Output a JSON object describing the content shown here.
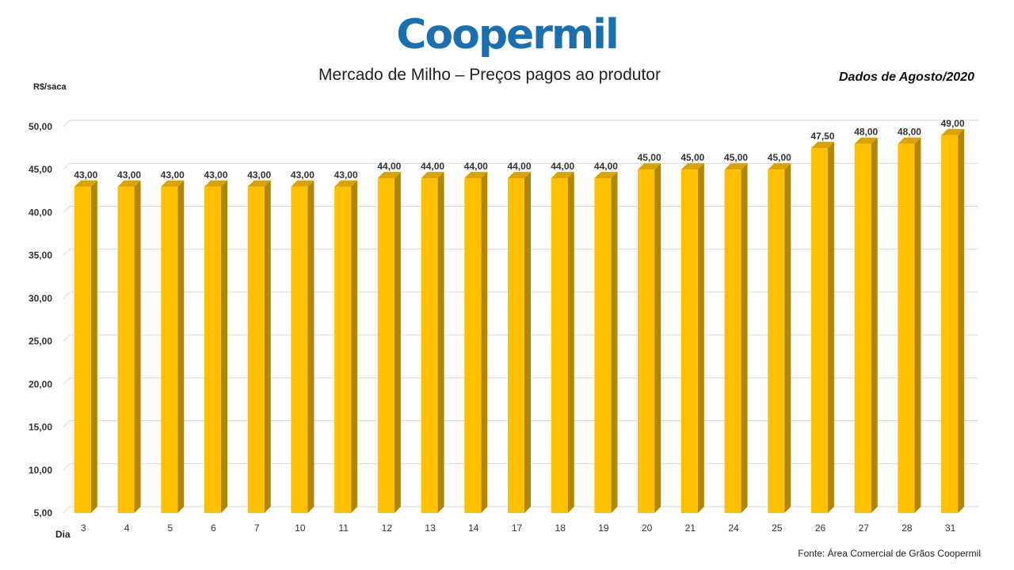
{
  "logo_text": "Coopermil",
  "chart_data": {
    "type": "bar",
    "title": "Mercado de Milho – Preços pagos ao produtor",
    "subtitle": "Dados de Agosto/2020",
    "xlabel": "Dia",
    "ylabel": "R$/saca",
    "source": "Fonte: Área Comercial de Grãos Coopermil",
    "categories": [
      "3",
      "4",
      "5",
      "6",
      "7",
      "10",
      "11",
      "12",
      "13",
      "14",
      "17",
      "18",
      "19",
      "20",
      "21",
      "24",
      "25",
      "26",
      "27",
      "28",
      "31"
    ],
    "values": [
      43.0,
      43.0,
      43.0,
      43.0,
      43.0,
      43.0,
      43.0,
      44.0,
      44.0,
      44.0,
      44.0,
      44.0,
      44.0,
      45.0,
      45.0,
      45.0,
      45.0,
      47.5,
      48.0,
      48.0,
      49.0
    ],
    "data_labels": [
      "43,00",
      "43,00",
      "43,00",
      "43,00",
      "43,00",
      "43,00",
      "43,00",
      "44,00",
      "44,00",
      "44,00",
      "44,00",
      "44,00",
      "44,00",
      "45,00",
      "45,00",
      "45,00",
      "45,00",
      "47,50",
      "48,00",
      "48,00",
      "49,00"
    ],
    "yticks": [
      "5,00",
      "10,00",
      "15,00",
      "20,00",
      "25,00",
      "30,00",
      "35,00",
      "40,00",
      "45,00",
      "50,00"
    ],
    "ylim": [
      5,
      50
    ],
    "grid": true,
    "colors": {
      "bar_front": "#ffc000",
      "bar_side": "#b38600",
      "bar_top": "#d9a300",
      "gridline": "#d9d9d9",
      "logo": "#1a6fb0"
    }
  }
}
